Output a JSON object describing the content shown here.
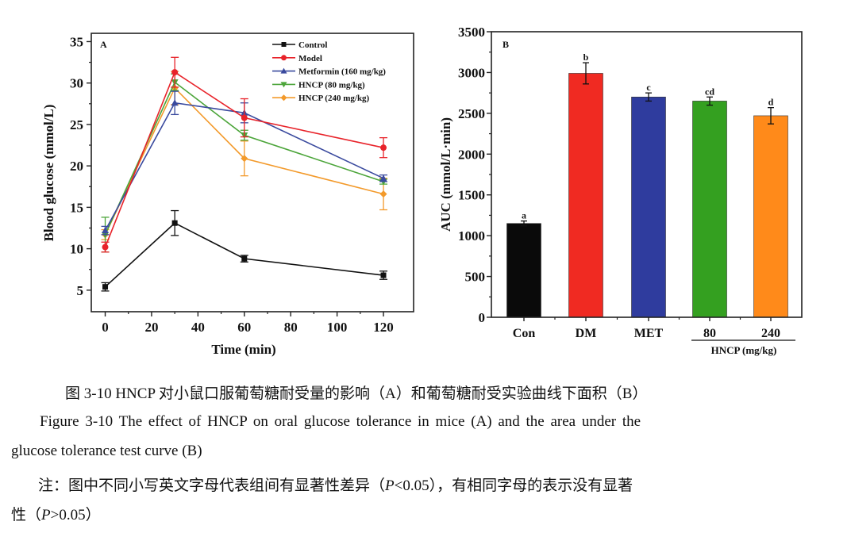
{
  "chart_data": [
    {
      "type": "line",
      "panel": "A",
      "title": "",
      "xlabel": "Time (min)",
      "ylabel": "Blood glucose (mmol/L)",
      "x": [
        0,
        30,
        60,
        120
      ],
      "xticks": [
        0,
        20,
        40,
        60,
        80,
        100,
        120
      ],
      "yticks": [
        5,
        10,
        15,
        20,
        25,
        30,
        35
      ],
      "xlim": [
        -6,
        133
      ],
      "ylim": [
        2.4,
        36
      ],
      "grid": false,
      "legend_position": "top-right",
      "series": [
        {
          "name": "Control",
          "color": "#111111",
          "marker": "square",
          "values": [
            5.4,
            13.1,
            8.8,
            6.8
          ],
          "errors": [
            0.5,
            1.5,
            0.4,
            0.5
          ]
        },
        {
          "name": "Model",
          "color": "#e8232a",
          "marker": "circle",
          "values": [
            10.2,
            31.3,
            25.8,
            22.2
          ],
          "errors": [
            0.6,
            1.8,
            2.3,
            1.2
          ]
        },
        {
          "name": "Metformin (160 mg/kg)",
          "color": "#3a4a9e",
          "marker": "triangle-up",
          "values": [
            12.2,
            27.6,
            26.4,
            18.5
          ],
          "errors": [
            0.5,
            1.4,
            1.2,
            0.4
          ]
        },
        {
          "name": "HNCP (80 mg/kg)",
          "color": "#4ca53a",
          "marker": "triangle-down",
          "values": [
            11.7,
            30.1,
            23.7,
            18.1
          ],
          "errors": [
            2.1,
            1.0,
            0.6,
            0.3
          ]
        },
        {
          "name": "HNCP (240 mg/kg)",
          "color": "#f39a2b",
          "marker": "diamond",
          "values": [
            11.7,
            29.4,
            20.9,
            16.6
          ],
          "errors": [
            0.6,
            2.0,
            2.1,
            1.9
          ]
        }
      ]
    },
    {
      "type": "bar",
      "panel": "B",
      "title": "",
      "xlabel": "",
      "ylabel": "AUC (mmol/L·min)",
      "categories": [
        "Con",
        "DM",
        "MET",
        "80",
        "240"
      ],
      "values": [
        1150,
        2990,
        2700,
        2650,
        2470
      ],
      "errors": [
        30,
        130,
        50,
        50,
        100
      ],
      "significance": [
        "a",
        "b",
        "c",
        "cd",
        "d"
      ],
      "colors": [
        "#0a0a0a",
        "#f02a22",
        "#2f3c9e",
        "#34a020",
        "#ff8a1a"
      ],
      "group_label": "HNCP (mg/kg)",
      "yticks": [
        0,
        500,
        1000,
        1500,
        2000,
        2500,
        3000,
        3500
      ],
      "ylim": [
        0,
        3500
      ],
      "grid": false
    }
  ],
  "caption": {
    "zh_title": "图 3-10 HNCP 对小鼠口服葡萄糖耐受量的影响（A）和葡萄糖耐受实验曲线下面积（B）",
    "en_title_line1": "Figure 3-10 The effect of HNCP on oral glucose tolerance in mice (A) and the area under the",
    "en_title_line2": "glucose tolerance test curve (B)",
    "note_line1_a": "注：图中不同小写英文字母代表组间有显著性差异（",
    "note_line1_p": "P",
    "note_line1_b": "<0.05），有相同字母的表示没有显著",
    "note_line2_a": "性（",
    "note_line2_p": "P",
    "note_line2_b": ">0.05）"
  }
}
